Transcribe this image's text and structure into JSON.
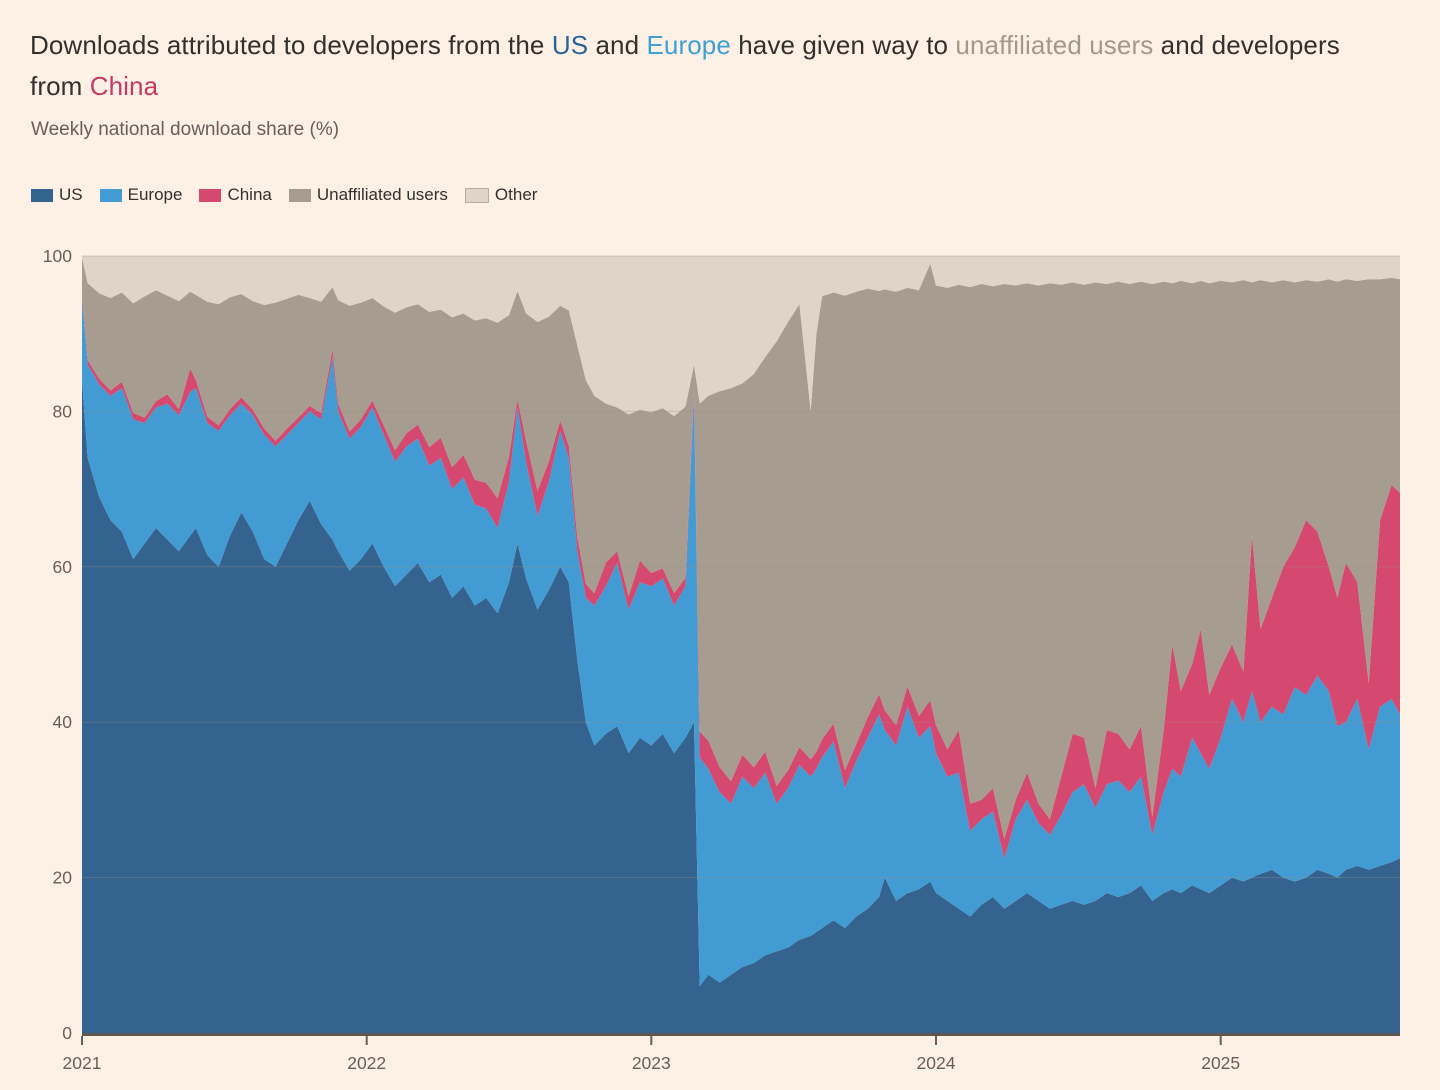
{
  "title": {
    "segments": [
      {
        "text": "Downloads attributed to developers from the ",
        "color": "#33302e"
      },
      {
        "text": "US",
        "color": "#2a649c"
      },
      {
        "text": " and ",
        "color": "#33302e"
      },
      {
        "text": "Europe",
        "color": "#3fa0d8"
      },
      {
        "text": " have given way to ",
        "color": "#33302e"
      },
      {
        "text": "unaffiliated users",
        "color": "#a2988c"
      },
      {
        "text": " and developers from ",
        "color": "#33302e"
      },
      {
        "text": "China",
        "color": "#c43a64"
      }
    ]
  },
  "chart_data": {
    "type": "area",
    "stacked": true,
    "subtitle": "Weekly national download share (%)",
    "unit": "%",
    "grid": "horizontal",
    "legend_position": "top",
    "x_label_note": "years, weekly resolution",
    "y_ticks": [
      0,
      20,
      40,
      60,
      80,
      100
    ],
    "x_ticks": [
      2021,
      2022,
      2023,
      2024,
      2025
    ],
    "x_range": [
      2021.0,
      2025.63
    ],
    "y_range": [
      0,
      100
    ],
    "axis": {
      "label_color": "#66605b",
      "baseline_color": "#5d574f",
      "grid_color": "#9b9186"
    },
    "x": [
      2021.0,
      2021.02,
      2021.06,
      2021.1,
      2021.14,
      2021.18,
      2021.22,
      2021.26,
      2021.3,
      2021.34,
      2021.38,
      2021.4,
      2021.44,
      2021.48,
      2021.52,
      2021.56,
      2021.6,
      2021.64,
      2021.68,
      2021.72,
      2021.76,
      2021.8,
      2021.84,
      2021.88,
      2021.9,
      2021.94,
      2021.98,
      2022.02,
      2022.06,
      2022.1,
      2022.14,
      2022.18,
      2022.22,
      2022.26,
      2022.3,
      2022.34,
      2022.38,
      2022.42,
      2022.46,
      2022.5,
      2022.53,
      2022.56,
      2022.6,
      2022.64,
      2022.68,
      2022.71,
      2022.74,
      2022.77,
      2022.8,
      2022.84,
      2022.88,
      2022.92,
      2022.96,
      2023.0,
      2023.04,
      2023.08,
      2023.12,
      2023.15,
      2023.17,
      2023.2,
      2023.24,
      2023.28,
      2023.32,
      2023.36,
      2023.4,
      2023.44,
      2023.48,
      2023.52,
      2023.56,
      2023.58,
      2023.6,
      2023.64,
      2023.68,
      2023.72,
      2023.76,
      2023.8,
      2023.82,
      2023.86,
      2023.9,
      2023.94,
      2023.98,
      2024.0,
      2024.04,
      2024.08,
      2024.12,
      2024.16,
      2024.2,
      2024.24,
      2024.28,
      2024.32,
      2024.36,
      2024.4,
      2024.44,
      2024.48,
      2024.52,
      2024.56,
      2024.6,
      2024.64,
      2024.68,
      2024.72,
      2024.76,
      2024.8,
      2024.83,
      2024.86,
      2024.9,
      2024.93,
      2024.96,
      2025.0,
      2025.04,
      2025.08,
      2025.11,
      2025.14,
      2025.18,
      2025.22,
      2025.26,
      2025.3,
      2025.34,
      2025.38,
      2025.41,
      2025.44,
      2025.48,
      2025.52,
      2025.56,
      2025.6,
      2025.63
    ],
    "series": [
      {
        "name": "US",
        "color": "#35638f",
        "values": [
          84,
          74,
          69,
          66,
          64.5,
          61,
          63,
          65,
          63.5,
          62,
          64,
          65,
          61.5,
          60,
          64,
          67,
          64.5,
          61,
          60,
          63,
          66,
          68.5,
          65.5,
          63.5,
          62,
          59.5,
          61,
          63,
          60,
          57.5,
          59,
          60.5,
          58,
          59,
          56,
          57.5,
          55,
          56,
          54,
          58,
          63,
          58.5,
          54.5,
          57,
          60,
          58,
          48,
          40,
          37,
          38.5,
          39.5,
          36,
          38,
          37,
          38.5,
          36,
          38,
          40,
          6,
          7.5,
          6.5,
          7.5,
          8.5,
          9,
          10,
          10.5,
          11,
          12,
          12.5,
          13,
          13.5,
          14.5,
          13.5,
          15,
          16,
          17.5,
          20,
          17,
          18,
          18.5,
          19.5,
          18,
          17,
          16,
          15,
          16.5,
          17.5,
          16,
          17,
          18,
          17,
          16,
          16.5,
          17,
          16.5,
          17,
          18,
          17.5,
          18,
          19,
          17,
          18,
          18.5,
          18,
          19,
          18.5,
          18,
          19,
          20,
          19.5,
          20,
          20.5,
          21,
          20,
          19.5,
          20,
          21,
          20.5,
          20,
          21,
          21.5,
          21,
          21.5,
          22,
          22.5
        ]
      },
      {
        "name": "Europe",
        "color": "#429cd3",
        "values": [
          10.5,
          12,
          14.5,
          16,
          18.5,
          18,
          15.5,
          15.5,
          17.5,
          17.5,
          18.5,
          18,
          17,
          17.5,
          15.5,
          14,
          15,
          16,
          15.5,
          14,
          12.5,
          11.5,
          13.5,
          23.5,
          18,
          17,
          17,
          17.5,
          17,
          16,
          16.5,
          16,
          15,
          15,
          14,
          14,
          13,
          11.5,
          11,
          13,
          17.5,
          15,
          12,
          14,
          17.5,
          16,
          14,
          16,
          18,
          19,
          21,
          18.5,
          20,
          20.5,
          20,
          19,
          19.5,
          42,
          29.5,
          26.5,
          24.5,
          22,
          24.5,
          22.5,
          23.5,
          19,
          20.5,
          22.5,
          20.5,
          21,
          22,
          23,
          18,
          20,
          22,
          23.5,
          19,
          20,
          24,
          19.5,
          20,
          18,
          16,
          17.5,
          11,
          11,
          11,
          6.5,
          10.5,
          12,
          10,
          9.5,
          11.5,
          14,
          15.5,
          12,
          14,
          15,
          13,
          14,
          8.5,
          13,
          15.5,
          15,
          19,
          17.5,
          16,
          19,
          23,
          20.5,
          24,
          19.5,
          21,
          21,
          25,
          23.5,
          25,
          23.5,
          19.5,
          19,
          21.5,
          15.5,
          20.5,
          21,
          18.5
        ]
      },
      {
        "name": "China",
        "color": "#d5486f",
        "values": [
          0.5,
          0.6,
          0.7,
          0.7,
          0.8,
          0.8,
          0.7,
          0.8,
          1.2,
          0.8,
          3,
          1,
          0.8,
          0.7,
          0.8,
          0.8,
          0.7,
          0.8,
          0.7,
          0.8,
          0.7,
          0.7,
          0.8,
          1,
          1,
          0.9,
          1,
          0.9,
          1.2,
          1.5,
          1.7,
          1.8,
          2.4,
          2.6,
          2.8,
          2.9,
          3.2,
          3.3,
          3.8,
          3.2,
          1.1,
          2.7,
          3.3,
          2.6,
          1.3,
          1.6,
          1.8,
          1.8,
          1.6,
          3,
          1.5,
          1.7,
          2.8,
          1.7,
          1.3,
          1.6,
          1.1,
          0.8,
          3.3,
          3.6,
          3.2,
          2.9,
          2.8,
          2.7,
          2.7,
          2.3,
          2.3,
          2.3,
          2.2,
          2.2,
          2.3,
          2.3,
          2.3,
          2.2,
          2.6,
          2.6,
          2.5,
          2.6,
          2.6,
          2.8,
          3.3,
          3.6,
          3.5,
          5.5,
          3.5,
          2.5,
          3,
          2.5,
          2.5,
          3.5,
          2.5,
          2,
          5,
          7.5,
          6,
          2.5,
          7,
          6,
          5.5,
          6.5,
          2.3,
          8,
          16,
          11,
          9.5,
          16,
          9.5,
          9,
          7,
          6.5,
          20,
          12,
          14,
          19,
          18,
          22.5,
          18.5,
          16,
          16.5,
          20.5,
          15,
          8.5,
          24,
          27.5,
          28.5
        ]
      },
      {
        "name": "Unaffiliated users",
        "color": "#a69c90",
        "values": [
          4.8,
          9.9,
          11,
          11.9,
          11.5,
          14.1,
          15.6,
          14.3,
          12.7,
          13.9,
          9.9,
          11,
          14.8,
          15.6,
          14.4,
          13.3,
          14,
          15.9,
          17.8,
          16.7,
          15.8,
          13.9,
          14.3,
          8,
          13.3,
          16.2,
          15,
          13.2,
          15.3,
          17.7,
          16.2,
          15.5,
          17.4,
          16.5,
          19.3,
          18.2,
          20.5,
          21.2,
          22.6,
          18.2,
          13.9,
          16.4,
          21.7,
          18.6,
          14.8,
          17.4,
          24.7,
          26.2,
          25.4,
          20.5,
          18.5,
          23.4,
          19.4,
          20.7,
          20.6,
          22.8,
          22,
          3.2,
          42.2,
          44.4,
          48.4,
          50.6,
          47.8,
          50.6,
          50.8,
          57.2,
          57.7,
          57,
          44.8,
          53.8,
          57,
          55.5,
          61.1,
          58.2,
          55.2,
          51.9,
          54.2,
          55.8,
          51.3,
          54.8,
          56.2,
          56.6,
          59.4,
          57.3,
          66.5,
          66.4,
          64.6,
          71.4,
          66.2,
          63,
          66.7,
          69,
          63.3,
          58.1,
          58.3,
          65.1,
          57.4,
          58.2,
          59.9,
          57.2,
          68.6,
          57.7,
          46.5,
          52.8,
          49,
          44.8,
          53,
          49.8,
          46.6,
          50.4,
          32.6,
          44.9,
          40.6,
          36.9,
          34.1,
          30.9,
          32.2,
          37,
          40.7,
          36.5,
          38.8,
          52,
          31,
          26.7,
          27.5
        ]
      },
      {
        "name": "Other",
        "color": "#ded4c7",
        "swatch_border": "#b9ae9f",
        "values": [
          0.2,
          3.5,
          4.8,
          5.4,
          4.7,
          6.1,
          5.2,
          4.4,
          5.1,
          5.8,
          4.6,
          5,
          5.9,
          6.2,
          5.3,
          4.9,
          5.8,
          6.3,
          6,
          5.5,
          5,
          5.4,
          5.9,
          4,
          5.7,
          6.4,
          6,
          5.4,
          6.5,
          7.3,
          6.6,
          6.2,
          7.2,
          6.9,
          7.9,
          7.4,
          8.3,
          8,
          8.6,
          7.6,
          4.5,
          7.4,
          8.5,
          7.8,
          6.4,
          7,
          11.5,
          16,
          18,
          19,
          19.5,
          20.4,
          19.8,
          20.1,
          19.6,
          20.6,
          19.4,
          14,
          19,
          18,
          17.4,
          17,
          16.4,
          15.2,
          13,
          11,
          8.5,
          6.2,
          20,
          10,
          5.2,
          4.7,
          5.1,
          4.6,
          4.2,
          4.5,
          4.3,
          4.6,
          4.1,
          4.4,
          1,
          3.8,
          4.1,
          3.7,
          4,
          3.6,
          3.9,
          3.6,
          3.8,
          3.5,
          3.8,
          3.5,
          3.7,
          3.4,
          3.7,
          3.4,
          3.6,
          3.3,
          3.6,
          3.3,
          3.6,
          3.3,
          3.5,
          3.2,
          3.5,
          3.2,
          3.5,
          3.2,
          3.4,
          3.1,
          3.4,
          3.1,
          3.4,
          3.1,
          3.4,
          3.1,
          3.3,
          3,
          3.3,
          3,
          3.2,
          3,
          3,
          2.8,
          3
        ]
      }
    ]
  }
}
